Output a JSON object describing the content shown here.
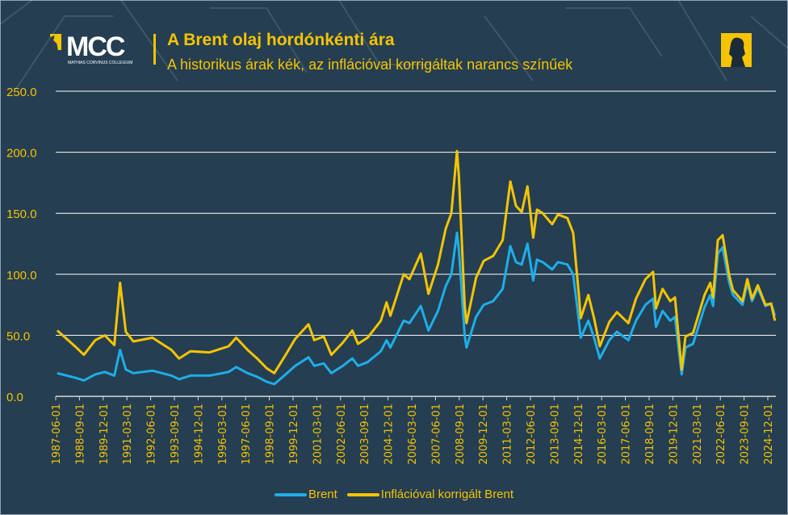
{
  "header": {
    "logo_text": "MCC",
    "logo_subtitle": "MATHIAS CORVINUS COLLEGIUM",
    "title": "A Brent olaj hordónkénti ára",
    "subtitle": "A historikus árak kék, az inflációval korrigáltak narancs színűek"
  },
  "colors": {
    "background": "#253e51",
    "brent": "#1eaee8",
    "adjusted": "#f5c400",
    "grid": "#ffffff",
    "text": "#f5c400"
  },
  "chart_data": {
    "type": "line",
    "title": "A Brent olaj hordónkénti ára",
    "ylim": [
      0,
      250
    ],
    "yticks": [
      "0.0",
      "50.0",
      "100.0",
      "150.0",
      "200.0",
      "250.0"
    ],
    "xlim": [
      1987.42,
      2025.25
    ],
    "xticks": [
      "1987-06-01",
      "1988-09-01",
      "1989-12-01",
      "1991-03-01",
      "1992-06-01",
      "1993-09-01",
      "1994-12-01",
      "1996-03-01",
      "1997-06-01",
      "1998-09-01",
      "1999-12-01",
      "2001-03-01",
      "2002-06-01",
      "2003-09-01",
      "2004-12-01",
      "2006-03-01",
      "2007-06-01",
      "2008-09-01",
      "2009-12-01",
      "2011-03-01",
      "2012-06-01",
      "2013-09-01",
      "2014-12-01",
      "2016-03-01",
      "2017-06-01",
      "2018-09-01",
      "2019-12-01",
      "2021-03-01",
      "2022-06-01",
      "2023-09-01",
      "2024-12-01"
    ],
    "x": [
      1987.5,
      1988.5,
      1988.9,
      1989.5,
      1990.0,
      1990.5,
      1990.8,
      1991.1,
      1991.5,
      1992.5,
      1993.5,
      1993.9,
      1994.5,
      1995.5,
      1996.5,
      1996.9,
      1997.5,
      1998.0,
      1998.5,
      1998.9,
      1999.5,
      2000.0,
      2000.7,
      2001.0,
      2001.5,
      2001.9,
      2002.5,
      2003.0,
      2003.3,
      2003.8,
      2004.5,
      2004.8,
      2005.0,
      2005.7,
      2006.0,
      2006.6,
      2007.0,
      2007.5,
      2007.9,
      2008.2,
      2008.5,
      2008.6,
      2008.9,
      2009.0,
      2009.5,
      2009.9,
      2010.4,
      2010.9,
      2011.3,
      2011.6,
      2011.9,
      2012.2,
      2012.5,
      2012.7,
      2013.0,
      2013.5,
      2013.8,
      2014.3,
      2014.6,
      2014.9,
      2015.0,
      2015.4,
      2015.7,
      2016.0,
      2016.5,
      2016.9,
      2017.5,
      2017.9,
      2018.4,
      2018.8,
      2018.95,
      2019.3,
      2019.7,
      2019.95,
      2020.3,
      2020.5,
      2020.9,
      2021.5,
      2021.8,
      2021.95,
      2022.2,
      2022.45,
      2022.8,
      2023.0,
      2023.5,
      2023.75,
      2024.0,
      2024.3,
      2024.7,
      2025.0,
      2025.2
    ],
    "series": [
      {
        "name": "Brent",
        "values": [
          19,
          15,
          13,
          18,
          20,
          17,
          38,
          22,
          19,
          21,
          17,
          14,
          17,
          17,
          20,
          24,
          19,
          16,
          12,
          10,
          18,
          25,
          32,
          25,
          27,
          19,
          25,
          31,
          25,
          28,
          37,
          46,
          40,
          62,
          60,
          74,
          54,
          70,
          90,
          100,
          134,
          120,
          50,
          40,
          65,
          75,
          78,
          88,
          123,
          110,
          108,
          125,
          95,
          112,
          110,
          104,
          110,
          108,
          100,
          62,
          48,
          62,
          48,
          31,
          46,
          53,
          46,
          62,
          75,
          80,
          57,
          70,
          62,
          65,
          18,
          40,
          43,
          73,
          83,
          74,
          117,
          122,
          93,
          83,
          75,
          93,
          78,
          89,
          74,
          76,
          66
        ]
      },
      {
        "name": "Inflációval korrigált Brent",
        "values": [
          54,
          40,
          34,
          46,
          50,
          42,
          93,
          53,
          45,
          48,
          38,
          31,
          37,
          36,
          41,
          48,
          38,
          31,
          23,
          19,
          34,
          47,
          59,
          46,
          49,
          34,
          44,
          54,
          43,
          48,
          62,
          77,
          66,
          100,
          96,
          117,
          84,
          108,
          137,
          150,
          201,
          180,
          75,
          60,
          97,
          111,
          115,
          128,
          176,
          156,
          151,
          172,
          130,
          153,
          150,
          141,
          149,
          146,
          134,
          83,
          64,
          83,
          64,
          41,
          61,
          69,
          60,
          80,
          96,
          102,
          72,
          88,
          78,
          81,
          22,
          49,
          52,
          83,
          93,
          81,
          128,
          132,
          99,
          87,
          78,
          96,
          80,
          91,
          75,
          76,
          62
        ]
      }
    ],
    "legend": "bottom"
  }
}
